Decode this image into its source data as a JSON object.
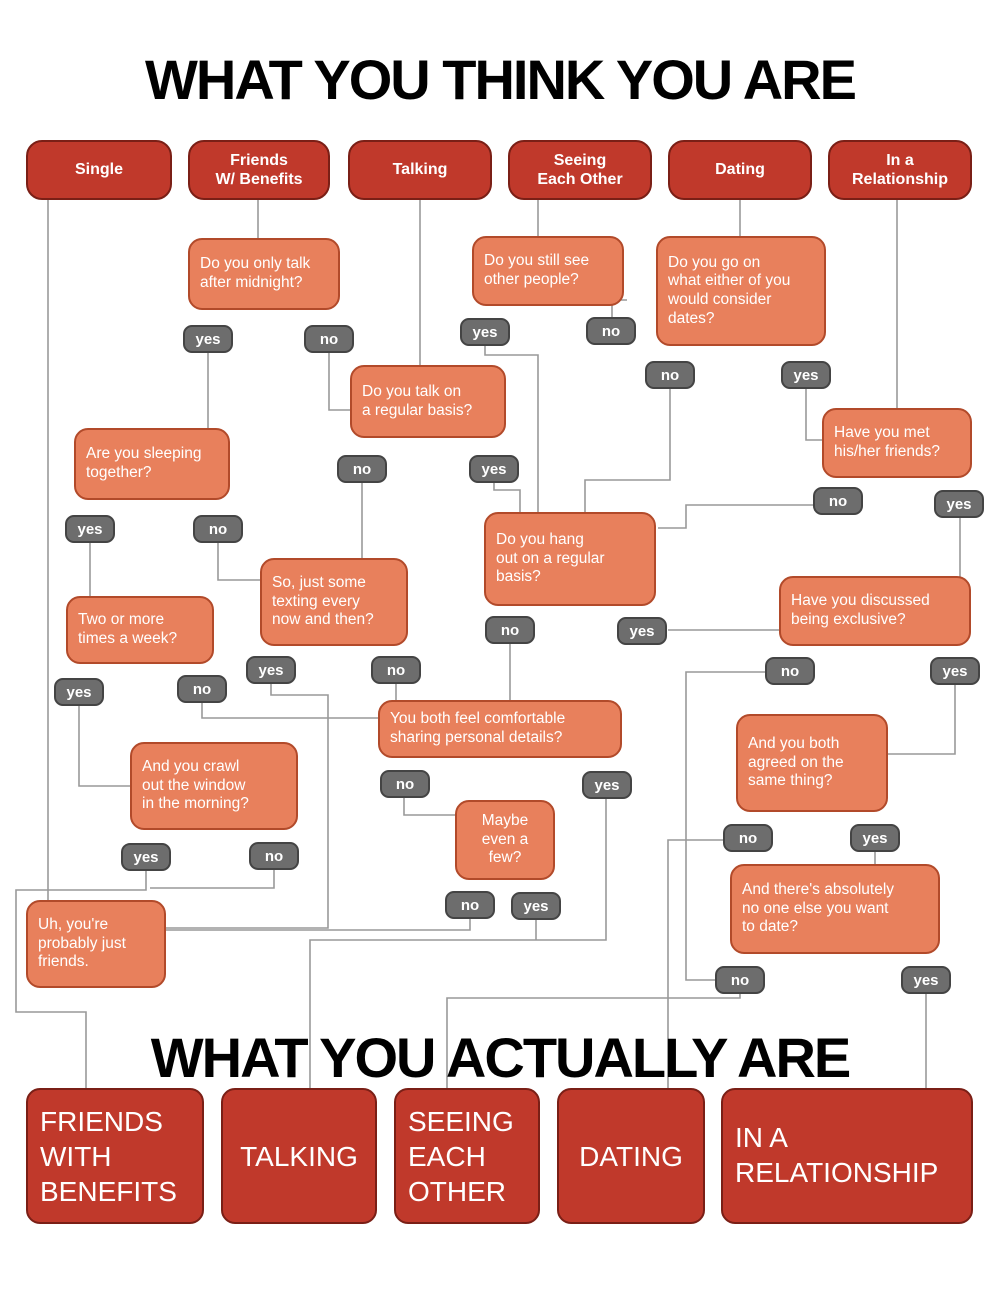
{
  "title_top": "WHAT YOU THINK YOU ARE",
  "title_bottom": "WHAT YOU ACTUALLY ARE",
  "categories": {
    "single": "Single",
    "fwb": "Friends\nW/ Benefits",
    "talking": "Talking",
    "seeing": "Seeing\nEach Other",
    "dating": "Dating",
    "relationship": "In a\nRelationship"
  },
  "questions": {
    "q_midnight": "Do you only talk\nafter midnight?",
    "q_still_see": "Do you still see\nother people?",
    "q_dates": "Do you go on\nwhat either of you\nwould consider\ndates?",
    "q_regular_talk": "Do you talk on\na regular basis?",
    "q_met_friends": "Have you met\nhis/her friends?",
    "q_sleeping": "Are you sleeping\ntogether?",
    "q_hang_out": "Do you hang\nout on a regular\nbasis?",
    "q_texting": "So, just some\ntexting every\nnow and then?",
    "q_two_times": "Two or more\ntimes a week?",
    "q_exclusive": "Have you discussed\nbeing exclusive?",
    "q_personal": "You both feel comfortable\nsharing personal details?",
    "q_agreed": "And you both\nagreed on the\nsame  thing?",
    "q_window": "And you crawl\nout the window\nin the morning?",
    "q_maybe_few": "Maybe\neven a\nfew?",
    "q_no_one_else": "And there's absolutely\nno one else you want\nto date?",
    "r_just_friends": "Uh, you're\nprobably just\nfriends."
  },
  "answers": {
    "yes": "yes",
    "no": "no"
  },
  "results": {
    "fwb": "FRIENDS\nWITH\nBENEFITS",
    "talking": "TALKING",
    "seeing": "SEEING\nEACH\nOTHER",
    "dating": "DATING",
    "relationship": "IN A\nRELATIONSHIP"
  },
  "colors": {
    "category_fill": "#c0392b",
    "question_fill": "#e8805c",
    "pill_fill": "#6d6d6d",
    "line": "#999999"
  }
}
